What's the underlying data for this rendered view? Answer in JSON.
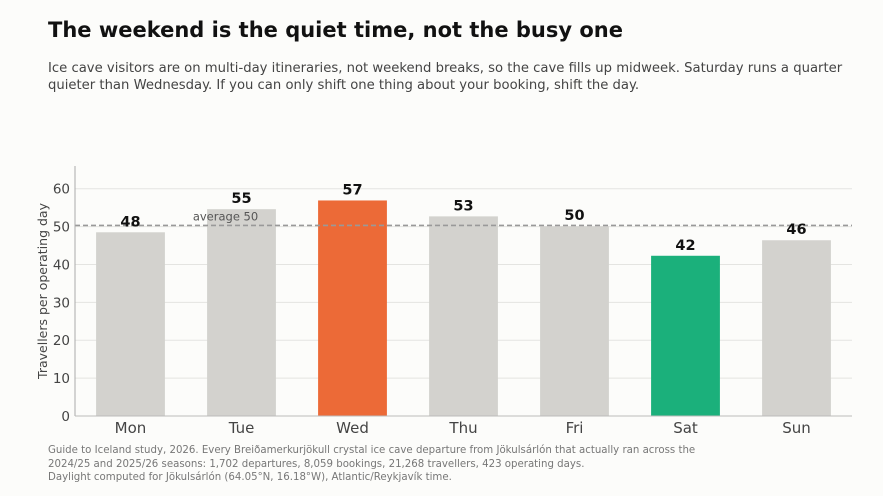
{
  "title": "The weekend is the quiet time, not the busy one",
  "subtitle": "Ice cave visitors are on multi-day itineraries, not weekend breaks, so the cave fills up midweek. Saturday runs a quarter quieter than Wednesday. If you can only shift one thing about your booking, shift the day.",
  "footnote": {
    "line1": "Guide to Iceland study, 2026. Every Breiðamerkurjökull crystal ice cave departure from Jökulsárlón that actually ran across the",
    "line2": "2024/25 and 2025/26 seasons: 1,702 departures, 8,059 bookings, 21,268 travellers, 423 operating days.",
    "line3": "Daylight computed for Jökulsárlón (64.05°N, 16.18°W), Atlantic/Reykjavík time."
  },
  "chart_data": {
    "type": "bar",
    "categories": [
      "Mon",
      "Tue",
      "Wed",
      "Thu",
      "Fri",
      "Sat",
      "Sun"
    ],
    "values": [
      48.5,
      54.6,
      56.9,
      52.7,
      50.1,
      42.3,
      46.4
    ],
    "value_labels": [
      "48",
      "55",
      "57",
      "53",
      "50",
      "42",
      "46"
    ],
    "bar_colors": [
      "#d3d2ce",
      "#d3d2ce",
      "#ec6a37",
      "#d3d2ce",
      "#d3d2ce",
      "#1bb07b",
      "#d3d2ce"
    ],
    "ylabel": "Travellers per operating day",
    "xlabel": "",
    "ylim": [
      0,
      66
    ],
    "yticks": [
      0,
      10,
      20,
      30,
      40,
      50,
      60
    ],
    "grid": "horizontal",
    "reference_line": {
      "value": 50.3,
      "label": "average 50",
      "color": "#999999"
    }
  }
}
